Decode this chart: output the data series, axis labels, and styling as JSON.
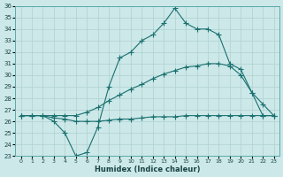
{
  "xlabel": "Humidex (Indice chaleur)",
  "bg_color": "#cce8e8",
  "line_color": "#1a7070",
  "grid_color": "#b0d0d0",
  "xlim": [
    -0.5,
    23.5
  ],
  "ylim": [
    23,
    36
  ],
  "xticks": [
    0,
    1,
    2,
    3,
    4,
    5,
    6,
    7,
    8,
    9,
    10,
    11,
    12,
    13,
    14,
    15,
    16,
    17,
    18,
    19,
    20,
    21,
    22,
    23
  ],
  "yticks": [
    23,
    24,
    25,
    26,
    27,
    28,
    29,
    30,
    31,
    32,
    33,
    34,
    35,
    36
  ],
  "curve1_x": [
    0,
    1,
    2,
    3,
    4,
    5,
    6,
    7,
    8,
    9,
    10,
    11,
    12,
    13,
    14,
    15,
    16,
    17,
    18,
    19,
    20,
    21,
    22,
    23
  ],
  "curve1_y": [
    26.5,
    26.5,
    26.5,
    26.0,
    25.0,
    23.0,
    23.3,
    25.5,
    29.0,
    31.5,
    32.0,
    33.0,
    33.5,
    34.5,
    35.8,
    34.5,
    34.0,
    34.0,
    33.5,
    31.0,
    30.5,
    28.5,
    26.5,
    26.5
  ],
  "curve2_x": [
    0,
    1,
    2,
    3,
    4,
    5,
    6,
    7,
    8,
    9,
    10,
    11,
    12,
    13,
    14,
    15,
    16,
    17,
    18,
    19,
    20,
    21,
    22,
    23
  ],
  "curve2_y": [
    26.5,
    26.5,
    26.5,
    26.5,
    26.5,
    26.5,
    26.8,
    27.2,
    27.8,
    28.3,
    28.8,
    29.2,
    29.7,
    30.1,
    30.4,
    30.7,
    30.8,
    31.0,
    31.0,
    30.8,
    30.0,
    28.5,
    27.5,
    26.5
  ],
  "curve3_x": [
    0,
    1,
    2,
    3,
    4,
    5,
    6,
    7,
    8,
    9,
    10,
    11,
    12,
    13,
    14,
    15,
    16,
    17,
    18,
    19,
    20,
    21,
    22,
    23
  ],
  "curve3_y": [
    26.5,
    26.5,
    26.5,
    26.3,
    26.2,
    26.0,
    26.0,
    26.0,
    26.1,
    26.2,
    26.2,
    26.3,
    26.4,
    26.4,
    26.4,
    26.5,
    26.5,
    26.5,
    26.5,
    26.5,
    26.5,
    26.5,
    26.5,
    26.5
  ]
}
